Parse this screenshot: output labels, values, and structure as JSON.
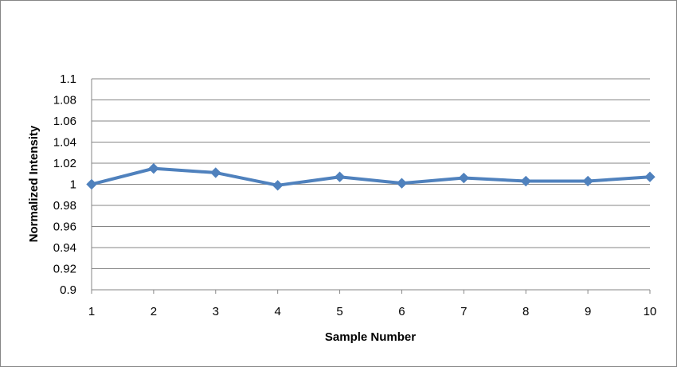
{
  "chart_data": {
    "type": "line",
    "title": "",
    "xlabel": "Sample Number",
    "ylabel": "Normalized Intensity",
    "x": [
      1,
      2,
      3,
      4,
      5,
      6,
      7,
      8,
      9,
      10
    ],
    "series": [
      {
        "values": [
          1.0,
          1.015,
          1.011,
          0.999,
          1.007,
          1.001,
          1.006,
          1.003,
          1.003,
          1.007
        ],
        "color": "#4F81BD",
        "marker": "diamond"
      }
    ],
    "ylim": [
      0.9,
      1.1
    ],
    "yticks": [
      "1.1",
      "1.08",
      "1.06",
      "1.04",
      "1.02",
      "1",
      "0.98",
      "0.96",
      "0.94",
      "0.92",
      "0.9"
    ],
    "xticks": [
      "1",
      "2",
      "3",
      "4",
      "5",
      "6",
      "7",
      "8",
      "9",
      "10"
    ],
    "grid": true,
    "legend": "none",
    "gridline_color": "#868686",
    "border_color": "#868686"
  }
}
